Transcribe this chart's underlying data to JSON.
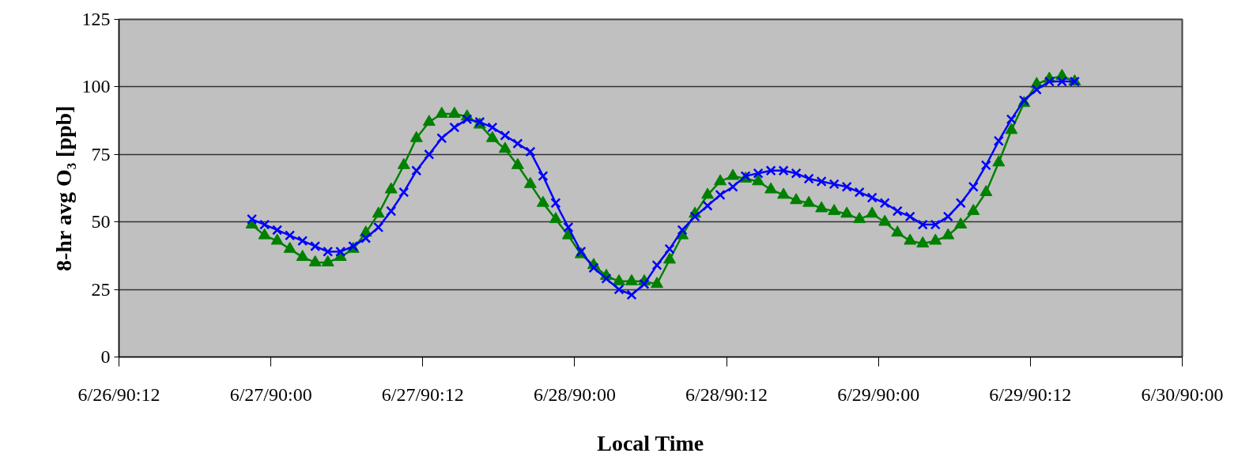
{
  "chart_data": {
    "type": "line",
    "xlabel": "Local Time",
    "ylabel": "8-hr avg O₃ [ppb]",
    "x": [
      "1990-06-26T22:30",
      "1990-06-26T23:30",
      "1990-06-27T00:30",
      "1990-06-27T01:30",
      "1990-06-27T02:30",
      "1990-06-27T03:30",
      "1990-06-27T04:30",
      "1990-06-27T05:30",
      "1990-06-27T06:30",
      "1990-06-27T07:30",
      "1990-06-27T08:30",
      "1990-06-27T09:30",
      "1990-06-27T10:30",
      "1990-06-27T11:30",
      "1990-06-27T12:30",
      "1990-06-27T13:30",
      "1990-06-27T14:30",
      "1990-06-27T15:30",
      "1990-06-27T16:30",
      "1990-06-27T17:30",
      "1990-06-27T18:30",
      "1990-06-27T19:30",
      "1990-06-27T20:30",
      "1990-06-27T21:30",
      "1990-06-27T22:30",
      "1990-06-27T23:30",
      "1990-06-28T00:30",
      "1990-06-28T01:30",
      "1990-06-28T02:30",
      "1990-06-28T03:30",
      "1990-06-28T04:30",
      "1990-06-28T05:30",
      "1990-06-28T06:30",
      "1990-06-28T07:30",
      "1990-06-28T08:30",
      "1990-06-28T09:30",
      "1990-06-28T10:30",
      "1990-06-28T11:30",
      "1990-06-28T12:30",
      "1990-06-28T13:30",
      "1990-06-28T14:30",
      "1990-06-28T15:30",
      "1990-06-28T16:30",
      "1990-06-28T17:30",
      "1990-06-28T18:30",
      "1990-06-28T19:30",
      "1990-06-28T20:30",
      "1990-06-28T21:30",
      "1990-06-28T22:30",
      "1990-06-28T23:30",
      "1990-06-29T00:30",
      "1990-06-29T01:30",
      "1990-06-29T02:30",
      "1990-06-29T03:30",
      "1990-06-29T04:30",
      "1990-06-29T05:30",
      "1990-06-29T06:30",
      "1990-06-29T07:30",
      "1990-06-29T08:30",
      "1990-06-29T09:30",
      "1990-06-29T10:30",
      "1990-06-29T11:30",
      "1990-06-29T12:30",
      "1990-06-29T13:30",
      "1990-06-29T14:30",
      "1990-06-29T15:30"
    ],
    "series": [
      {
        "color": "#008000",
        "marker": "triangle",
        "values": [
          49,
          45,
          43,
          40,
          37,
          35,
          35,
          37,
          40,
          46,
          53,
          62,
          71,
          81,
          87,
          90,
          90,
          89,
          86,
          81,
          77,
          71,
          64,
          57,
          51,
          45,
          38,
          34,
          30,
          28,
          28,
          28,
          27,
          36,
          45,
          53,
          60,
          65,
          67,
          66,
          65,
          62,
          60,
          58,
          57,
          55,
          54,
          53,
          51,
          53,
          50,
          46,
          43,
          42,
          43,
          45,
          49,
          54,
          61,
          72,
          84,
          94,
          101,
          103,
          104,
          102
        ]
      },
      {
        "color": "#0000ff",
        "marker": "cross",
        "values": [
          51,
          49,
          47,
          45,
          43,
          41,
          39,
          39,
          41,
          44,
          48,
          54,
          61,
          69,
          75,
          81,
          85,
          88,
          87,
          85,
          82,
          79,
          76,
          67,
          57,
          48,
          39,
          33,
          29,
          25,
          23,
          27,
          34,
          40,
          47,
          52,
          56,
          60,
          63,
          67,
          68,
          69,
          69,
          68,
          66,
          65,
          64,
          63,
          61,
          59,
          57,
          54,
          52,
          49,
          49,
          52,
          57,
          63,
          71,
          80,
          88,
          95,
          99,
          102,
          102,
          102
        ]
      }
    ],
    "xlim": [
      "1990-06-26T12:00",
      "1990-06-30T00:00"
    ],
    "xticks": [
      {
        "value": "1990-06-26T12:00",
        "label": "6/26/90:12"
      },
      {
        "value": "1990-06-27T00:00",
        "label": "6/27/90:00"
      },
      {
        "value": "1990-06-27T12:00",
        "label": "6/27/90:12"
      },
      {
        "value": "1990-06-28T00:00",
        "label": "6/28/90:00"
      },
      {
        "value": "1990-06-28T12:00",
        "label": "6/28/90:12"
      },
      {
        "value": "1990-06-29T00:00",
        "label": "6/29/90:00"
      },
      {
        "value": "1990-06-29T12:00",
        "label": "6/29/90:12"
      },
      {
        "value": "1990-06-30T00:00",
        "label": "6/30/90:00"
      }
    ],
    "ylim": [
      0,
      125
    ],
    "yticks": [
      0,
      25,
      50,
      75,
      100,
      125
    ],
    "grid": "y",
    "line_style": "solid"
  }
}
